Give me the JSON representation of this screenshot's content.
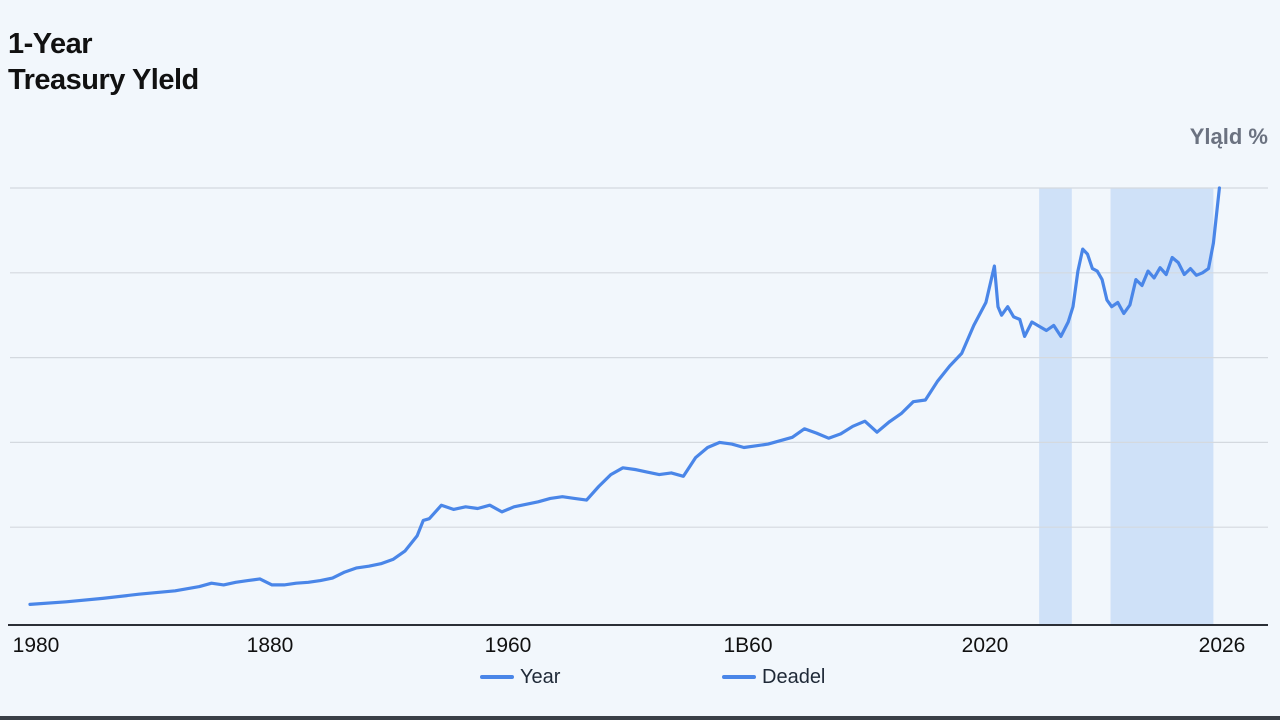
{
  "title_lines": [
    "1-Year",
    "Treasury Yleld"
  ],
  "y_axis_label": "Yląld %",
  "colors": {
    "line": "#4a86e8",
    "band": "#c9ddf7",
    "grid": "#d4d9df",
    "axis": "#2b2f36",
    "text": "#111111"
  },
  "legend": [
    {
      "label": "Year",
      "color": "#4a86e8"
    },
    {
      "label": "Deadel",
      "color": "#4a86e8"
    }
  ],
  "chart_data": {
    "type": "line",
    "title": "1-Year Treasury Yleld",
    "ylabel": "Yląld %",
    "x_tick_labels": [
      "1980",
      "1880",
      "1960",
      "1B60",
      "2020",
      "2026"
    ],
    "xlim": [
      0,
      100
    ],
    "ylim": [
      0,
      5
    ],
    "grid": "horizontal",
    "legend_position": "bottom",
    "shaded_bands": [
      [
        83.4,
        86.1
      ],
      [
        89.3,
        97.8
      ]
    ],
    "series": [
      {
        "name": "Year",
        "x": [
          0,
          3,
          6,
          9,
          12,
          14,
          15,
          16,
          17,
          18,
          19,
          20,
          21,
          22,
          23,
          24,
          25,
          26,
          27,
          28,
          29,
          30,
          31,
          32,
          32.5,
          33,
          34,
          35,
          36,
          37,
          38,
          39,
          40,
          41,
          42,
          43,
          44,
          45,
          46,
          47,
          48,
          49,
          50,
          51,
          52,
          53,
          54,
          55,
          56,
          57,
          58,
          59,
          60,
          61,
          62,
          63,
          64,
          65,
          66,
          67,
          68,
          69,
          70,
          71,
          72,
          73,
          74,
          75,
          76,
          77,
          78,
          79,
          79.7,
          80,
          80.3,
          80.8,
          81.3,
          81.8,
          82.2,
          82.8,
          83.4,
          84.0,
          84.6,
          85.2,
          85.8,
          86.2,
          86.6,
          87.0,
          87.4,
          87.8,
          88.2,
          88.6,
          89.0,
          89.4,
          89.9,
          90.4,
          90.9,
          91.4,
          91.9,
          92.4,
          92.9,
          93.4,
          93.9,
          94.4,
          94.9,
          95.4,
          95.9,
          96.4,
          96.9,
          97.4,
          97.8,
          98.3
        ],
        "values": [
          0.09,
          0.12,
          0.16,
          0.21,
          0.25,
          0.3,
          0.34,
          0.32,
          0.35,
          0.37,
          0.39,
          0.32,
          0.32,
          0.34,
          0.35,
          0.37,
          0.4,
          0.47,
          0.52,
          0.54,
          0.57,
          0.62,
          0.72,
          0.9,
          1.08,
          1.1,
          1.26,
          1.21,
          1.24,
          1.22,
          1.26,
          1.18,
          1.24,
          1.27,
          1.3,
          1.34,
          1.36,
          1.34,
          1.32,
          1.48,
          1.62,
          1.7,
          1.68,
          1.65,
          1.62,
          1.64,
          1.6,
          1.82,
          1.94,
          2.0,
          1.98,
          1.94,
          1.96,
          1.98,
          2.02,
          2.06,
          2.16,
          2.11,
          2.05,
          2.1,
          2.19,
          2.25,
          2.12,
          2.24,
          2.34,
          2.48,
          2.5,
          2.72,
          2.9,
          3.05,
          3.38,
          3.65,
          4.08,
          3.6,
          3.5,
          3.6,
          3.48,
          3.45,
          3.25,
          3.42,
          3.37,
          3.32,
          3.38,
          3.25,
          3.42,
          3.6,
          4.02,
          4.28,
          4.22,
          4.05,
          4.02,
          3.92,
          3.68,
          3.6,
          3.65,
          3.52,
          3.62,
          3.92,
          3.85,
          4.02,
          3.94,
          4.06,
          3.98,
          4.18,
          4.12,
          3.98,
          4.05,
          3.97,
          4.0,
          4.05,
          4.35,
          5.0
        ]
      }
    ]
  }
}
